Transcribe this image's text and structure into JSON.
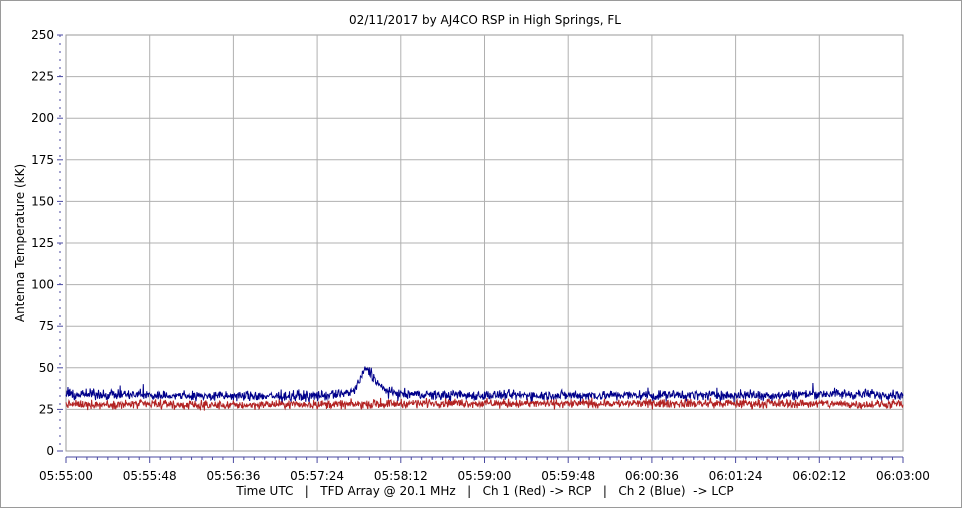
{
  "chart_data": {
    "type": "line",
    "title": "02/11/2017  by  AJ4CO RSP  in  High Springs, FL",
    "ylabel": "Antenna Temperature (kK)",
    "xlabel": "Time UTC   |   TFD Array @ 20.1 MHz   |   Ch 1 (Red) -> RCP   |   Ch 2 (Blue)  -> LCP",
    "ylim": [
      0,
      250
    ],
    "yticks": [
      "0",
      "25",
      "50",
      "75",
      "100",
      "125",
      "150",
      "175",
      "200",
      "225",
      "250"
    ],
    "xlim": [
      "05:55:00",
      "06:03:00"
    ],
    "xticks": [
      "05:55:00",
      "05:55:48",
      "05:56:36",
      "05:57:24",
      "05:58:12",
      "05:59:00",
      "05:59:48",
      "06:00:36",
      "06:01:24",
      "06:02:12",
      "06:03:00"
    ],
    "grid": true,
    "legend": "none",
    "series": [
      {
        "color": "#b22222",
        "time_s": [
          0,
          24,
          48,
          72,
          96,
          120,
          144,
          168,
          192,
          216,
          240,
          264,
          288,
          300,
          312,
          336,
          360,
          384,
          408,
          432,
          456,
          480
        ],
        "values": [
          28,
          28,
          28,
          27.5,
          27.5,
          28,
          28,
          28,
          28.5,
          29,
          28.5,
          28.5,
          28.5,
          28.5,
          28.5,
          28.5,
          28.5,
          28.5,
          28.5,
          28.5,
          28,
          28
        ]
      },
      {
        "color": "#00008b",
        "time_s": [
          0,
          24,
          48,
          72,
          96,
          120,
          144,
          156,
          165,
          168,
          172,
          176,
          180,
          186,
          192,
          216,
          240,
          264,
          288,
          312,
          336,
          360,
          384,
          408,
          432,
          456,
          480
        ],
        "values": [
          34,
          34,
          33.5,
          33,
          33,
          33,
          33,
          34,
          36,
          41,
          50,
          45,
          39,
          35,
          34,
          33.5,
          33.5,
          33.5,
          33.5,
          33.5,
          33.5,
          33.5,
          33.5,
          33.5,
          34.5,
          34,
          34
        ]
      }
    ],
    "colors": {
      "grid": "#b0b0b0",
      "axis": "#4a4aa0",
      "plot_border": "#9a9a9a"
    }
  }
}
